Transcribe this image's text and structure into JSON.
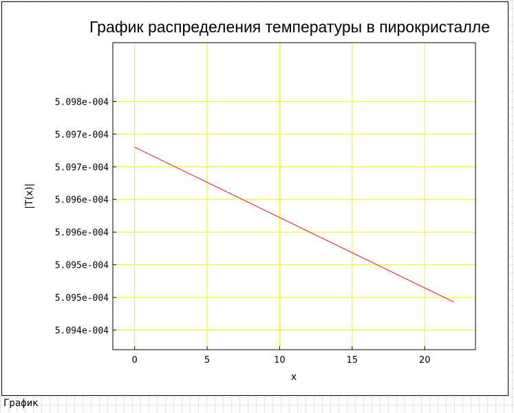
{
  "window": {
    "caption": "График"
  },
  "chart_data": {
    "type": "line",
    "title": "График распределения температуры в пирокристалле",
    "xlabel": "x",
    "ylabel": "|T(x)|",
    "xlim": [
      -1.5,
      23.5
    ],
    "ylim": [
      0.00050937,
      0.00050984
    ],
    "x_ticks": [
      0,
      5,
      10,
      15,
      20
    ],
    "x_tick_labels": [
      "0",
      "5",
      "10",
      "15",
      "20"
    ],
    "y_ticks": [
      0.0005094,
      0.00050945,
      0.0005095,
      0.00050955,
      0.0005096,
      0.00050965,
      0.0005097,
      0.00050975
    ],
    "y_tick_labels": [
      "5.094e-004",
      "5.095e-004",
      "5.095e-004",
      "5.096e-004",
      "5.096e-004",
      "5.097e-004",
      "5.097e-004",
      "5.098e-004"
    ],
    "grid": true,
    "series": [
      {
        "x": [
          0,
          22
        ],
        "y": [
          0.00050968,
          0.000509443
        ]
      }
    ],
    "colors": {
      "line": "#e0191b",
      "grid": "#f2f200",
      "axes": "#000000"
    }
  }
}
